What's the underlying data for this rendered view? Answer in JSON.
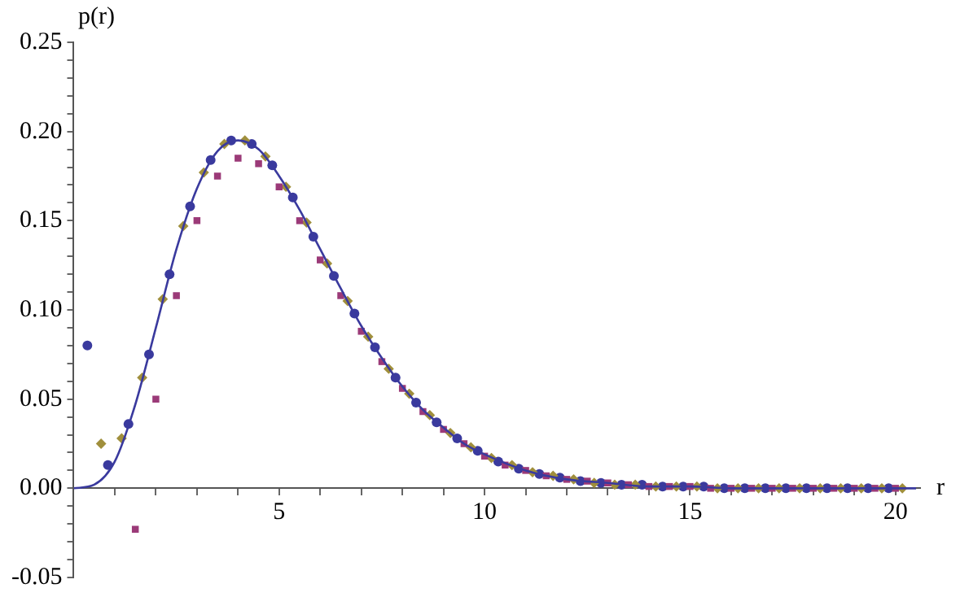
{
  "chart_data": {
    "type": "scatter",
    "xlabel": "r",
    "ylabel": "p(r)",
    "xlim": [
      0,
      20.6
    ],
    "ylim": [
      -0.05,
      0.25
    ],
    "xticks": [
      {
        "value": 1,
        "label": null
      },
      {
        "value": 2,
        "label": null
      },
      {
        "value": 3,
        "label": null
      },
      {
        "value": 4,
        "label": null
      },
      5,
      {
        "value": 6,
        "label": null
      },
      {
        "value": 7,
        "label": null
      },
      {
        "value": 8,
        "label": null
      },
      {
        "value": 9,
        "label": null
      },
      10,
      {
        "value": 11,
        "label": null
      },
      {
        "value": 12,
        "label": null
      },
      {
        "value": 13,
        "label": null
      },
      {
        "value": 14,
        "label": null
      },
      15,
      {
        "value": 16,
        "label": null
      },
      {
        "value": 17,
        "label": null
      },
      {
        "value": 18,
        "label": null
      },
      {
        "value": 19,
        "label": null
      },
      20
    ],
    "yticks": [
      -0.05,
      {
        "value": -0.04,
        "label": null
      },
      {
        "value": -0.03,
        "label": null
      },
      {
        "value": -0.02,
        "label": null
      },
      {
        "value": -0.01,
        "label": null
      },
      {
        "value": 0,
        "label": "0.00"
      },
      {
        "value": 0.01,
        "label": null
      },
      {
        "value": 0.02,
        "label": null
      },
      {
        "value": 0.03,
        "label": null
      },
      {
        "value": 0.04,
        "label": null
      },
      0.05,
      {
        "value": 0.06,
        "label": null
      },
      {
        "value": 0.07,
        "label": null
      },
      {
        "value": 0.08,
        "label": null
      },
      {
        "value": 0.09,
        "label": null
      },
      {
        "value": 0.1,
        "label": "0.10"
      },
      {
        "value": 0.11,
        "label": null
      },
      {
        "value": 0.12,
        "label": null
      },
      {
        "value": 0.13,
        "label": null
      },
      {
        "value": 0.14,
        "label": null
      },
      0.15,
      {
        "value": 0.16,
        "label": null
      },
      {
        "value": 0.17,
        "label": null
      },
      {
        "value": 0.18,
        "label": null
      },
      {
        "value": 0.19,
        "label": null
      },
      {
        "value": 0.2,
        "label": "0.20"
      },
      {
        "value": 0.21,
        "label": null
      },
      {
        "value": 0.22,
        "label": null
      },
      {
        "value": 0.23,
        "label": null
      },
      {
        "value": 0.24,
        "label": null
      },
      0.25
    ],
    "grid": false,
    "legend": false,
    "series": [
      {
        "type": "line",
        "marker": "none",
        "line_style": "solid",
        "color": "#3a3a9e",
        "x": [
          0,
          0.5,
          1,
          1.5,
          2,
          2.5,
          3,
          3.5,
          4,
          4.5,
          5,
          5.5,
          6,
          6.5,
          7,
          7.5,
          8,
          8.5,
          9,
          9.5,
          10,
          11,
          12,
          13,
          14,
          15,
          16,
          18,
          20.5
        ],
        "values": [
          0,
          0.002,
          0.015,
          0.047,
          0.09,
          0.134,
          0.168,
          0.189,
          0.195,
          0.19,
          0.175,
          0.156,
          0.134,
          0.112,
          0.091,
          0.073,
          0.057,
          0.044,
          0.034,
          0.025,
          0.019,
          0.01,
          0.005,
          0.003,
          0.001,
          0.001,
          0,
          0,
          0
        ]
      },
      {
        "marker": "square",
        "color": "#9b3a78",
        "x": [
          1.5,
          2,
          2.5,
          3,
          3.5,
          4,
          4.5,
          5,
          5.5,
          6,
          6.5,
          7,
          7.5,
          8,
          8.5,
          9,
          9.5,
          10,
          10.5,
          11,
          11.5,
          12,
          12.5,
          13,
          13.5,
          14,
          14.5,
          15,
          15.5,
          16,
          16.5,
          17,
          17.5,
          18,
          18.5,
          19,
          19.5,
          20
        ],
        "values": [
          -0.023,
          0.05,
          0.108,
          0.15,
          0.175,
          0.185,
          0.182,
          0.169,
          0.15,
          0.128,
          0.108,
          0.088,
          0.071,
          0.056,
          0.043,
          0.033,
          0.025,
          0.018,
          0.013,
          0.01,
          0.007,
          0.005,
          0.004,
          0.003,
          0.002,
          0.001,
          0.001,
          0.001,
          0,
          0,
          0,
          0,
          0,
          0,
          0,
          0,
          0,
          0
        ]
      },
      {
        "marker": "diamond",
        "color": "#a08f3c",
        "x": [
          0.667,
          1.167,
          1.667,
          2.167,
          2.667,
          3.167,
          3.667,
          4.167,
          4.667,
          5.167,
          5.667,
          6.167,
          6.667,
          7.167,
          7.667,
          8.167,
          8.667,
          9.167,
          9.667,
          10.167,
          10.667,
          11.167,
          11.667,
          12.167,
          12.667,
          13.167,
          13.667,
          14.167,
          14.667,
          15.167,
          15.667,
          16.167,
          16.667,
          17.167,
          17.667,
          18.167,
          18.667,
          19.167,
          19.667,
          20.167
        ],
        "values": [
          0.025,
          0.028,
          0.062,
          0.106,
          0.147,
          0.177,
          0.193,
          0.195,
          0.186,
          0.169,
          0.149,
          0.126,
          0.105,
          0.085,
          0.067,
          0.053,
          0.041,
          0.031,
          0.023,
          0.017,
          0.013,
          0.009,
          0.007,
          0.005,
          0.003,
          0.002,
          0.002,
          0.001,
          0.001,
          0.001,
          0,
          0,
          0,
          0,
          0,
          0,
          0,
          0,
          0,
          0
        ]
      },
      {
        "marker": "circle",
        "color": "#3a3a9e",
        "x": [
          0.333,
          0.833,
          1.333,
          1.833,
          2.333,
          2.833,
          3.333,
          3.833,
          4.333,
          4.833,
          5.333,
          5.833,
          6.333,
          6.833,
          7.333,
          7.833,
          8.333,
          8.833,
          9.333,
          9.833,
          10.333,
          10.833,
          11.333,
          11.833,
          12.333,
          12.833,
          13.333,
          13.833,
          14.333,
          14.833,
          15.333,
          15.833,
          16.333,
          16.833,
          17.333,
          17.833,
          18.333,
          18.833,
          19.333,
          19.833
        ],
        "values": [
          0.08,
          0.013,
          0.036,
          0.075,
          0.12,
          0.158,
          0.184,
          0.195,
          0.193,
          0.181,
          0.163,
          0.141,
          0.119,
          0.098,
          0.079,
          0.062,
          0.048,
          0.037,
          0.028,
          0.021,
          0.015,
          0.011,
          0.008,
          0.006,
          0.004,
          0.003,
          0.002,
          0.002,
          0.001,
          0.001,
          0.001,
          0,
          0,
          0,
          0,
          0,
          0,
          0,
          0,
          0
        ]
      }
    ]
  }
}
